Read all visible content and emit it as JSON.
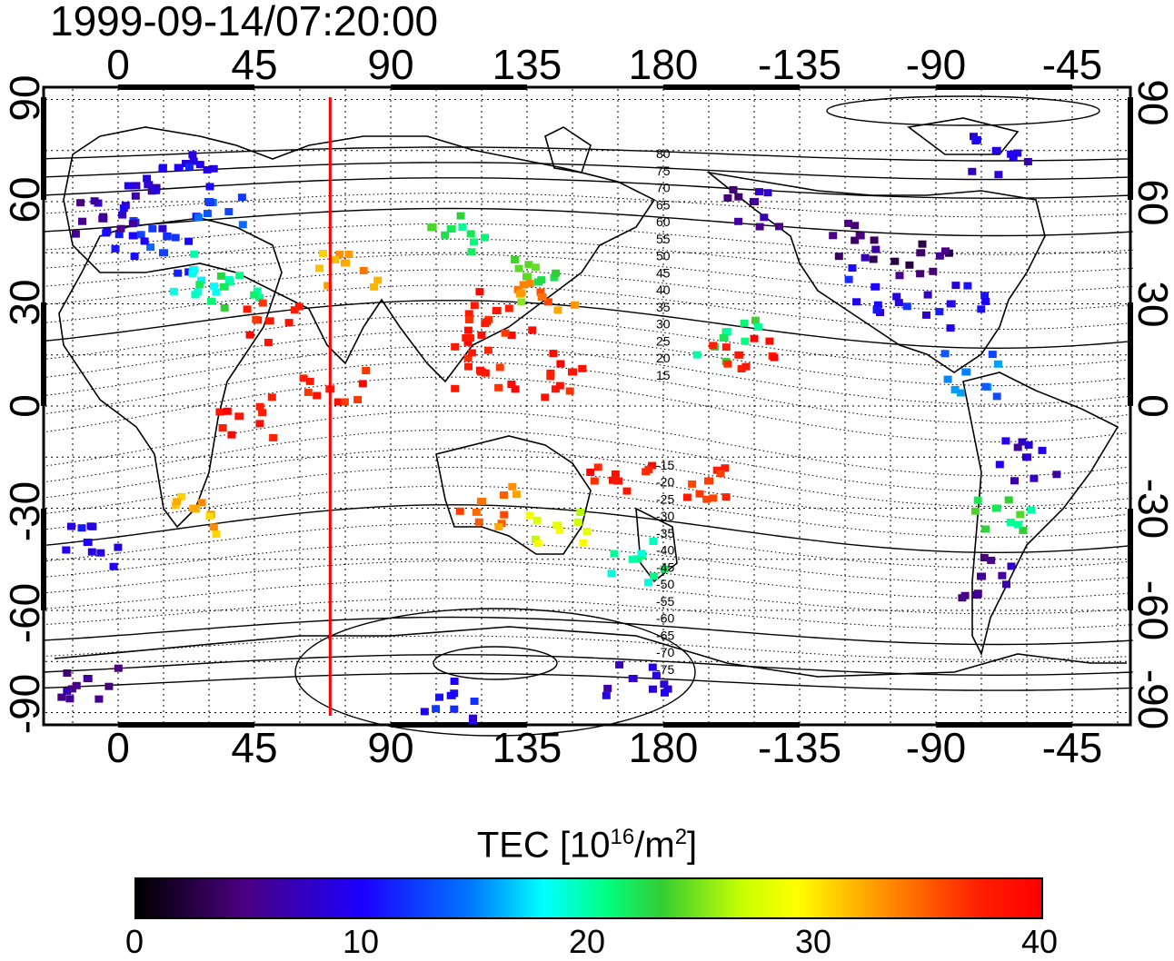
{
  "timestamp": "1999-09-14/07:20:00",
  "top_lon_labels": [
    "0",
    "45",
    "90",
    "135",
    "180",
    "-135",
    "-90",
    "-45"
  ],
  "bottom_lon_labels": [
    "0",
    "45",
    "90",
    "135",
    "180",
    "-135",
    "-90",
    "-45"
  ],
  "left_lat_labels": [
    "90",
    "60",
    "30",
    "0",
    "-30",
    "-60",
    "-90"
  ],
  "right_lat_labels": [
    "90",
    "60",
    "30",
    "0",
    "-30",
    "-60",
    "-90"
  ],
  "contour_labels": [
    "80",
    "75",
    "70",
    "65",
    "60",
    "55",
    "50",
    "45",
    "40",
    "35",
    "30",
    "25",
    "20",
    "15",
    "-15",
    "-20",
    "-25",
    "-30",
    "-35",
    "-40",
    "-45",
    "-50",
    "-55",
    "-60",
    "-65",
    "-70",
    "-75"
  ],
  "colorbar": {
    "title_pre": "TEC  [10",
    "title_exp1": "16",
    "title_mid": "/m",
    "title_exp2": "2",
    "title_post": "]",
    "ticks": [
      "0",
      "10",
      "20",
      "30",
      "40"
    ],
    "min": 0,
    "max": 40
  },
  "marker_longitude": 70,
  "colors": {
    "marker": "#ff0000"
  },
  "chart_data": {
    "type": "heatmap",
    "title": "1999-09-14/07:20:00",
    "xlabel": "",
    "ylabel": "",
    "xlim": [
      -25,
      335
    ],
    "ylim": [
      -90,
      90
    ],
    "value_label": "TEC [10^16/m^2]",
    "value_range": [
      0,
      40
    ],
    "tec_patches": [
      {
        "lon": 10,
        "lat": 65,
        "tec": 8
      },
      {
        "lon": 20,
        "lat": 70,
        "tec": 10
      },
      {
        "lon": 30,
        "lat": 60,
        "tec": 12
      },
      {
        "lon": 5,
        "lat": 50,
        "tec": 10
      },
      {
        "lon": 15,
        "lat": 45,
        "tec": 12
      },
      {
        "lon": -5,
        "lat": 55,
        "tec": 6
      },
      {
        "lon": 25,
        "lat": 40,
        "tec": 18
      },
      {
        "lon": 35,
        "lat": 35,
        "tec": 22
      },
      {
        "lon": 50,
        "lat": 25,
        "tec": 38
      },
      {
        "lon": 75,
        "lat": 42,
        "tec": 32
      },
      {
        "lon": 110,
        "lat": 52,
        "tec": 22
      },
      {
        "lon": 135,
        "lat": 38,
        "tec": 24
      },
      {
        "lon": 125,
        "lat": 28,
        "tec": 38
      },
      {
        "lon": 140,
        "lat": 32,
        "tec": 34
      },
      {
        "lon": 115,
        "lat": 20,
        "tec": 38
      },
      {
        "lon": 120,
        "lat": 10,
        "tec": 38
      },
      {
        "lon": 150,
        "lat": 10,
        "tec": 38
      },
      {
        "lon": 70,
        "lat": 5,
        "tec": 38
      },
      {
        "lon": 40,
        "lat": -3,
        "tec": 38
      },
      {
        "lon": 25,
        "lat": -30,
        "tec": 32
      },
      {
        "lon": -10,
        "lat": -40,
        "tec": 10
      },
      {
        "lon": 120,
        "lat": -28,
        "tec": 34
      },
      {
        "lon": 145,
        "lat": -35,
        "tec": 28
      },
      {
        "lon": 165,
        "lat": -22,
        "tec": 38
      },
      {
        "lon": 170,
        "lat": -45,
        "tec": 20
      },
      {
        "lon": 195,
        "lat": -22,
        "tec": 36
      },
      {
        "lon": 200,
        "lat": 20,
        "tec": 22
      },
      {
        "lon": 205,
        "lat": 15,
        "tec": 38
      },
      {
        "lon": 245,
        "lat": 50,
        "tec": 5
      },
      {
        "lon": 265,
        "lat": 45,
        "tec": 4
      },
      {
        "lon": 250,
        "lat": 35,
        "tec": 10
      },
      {
        "lon": 275,
        "lat": 30,
        "tec": 9
      },
      {
        "lon": 280,
        "lat": 10,
        "tec": 14
      },
      {
        "lon": 300,
        "lat": -15,
        "tec": 8
      },
      {
        "lon": 290,
        "lat": -30,
        "tec": 22
      },
      {
        "lon": 285,
        "lat": -50,
        "tec": 6
      },
      {
        "lon": 210,
        "lat": 60,
        "tec": 6
      },
      {
        "lon": 290,
        "lat": 75,
        "tec": 9
      },
      {
        "lon": 110,
        "lat": -85,
        "tec": 10
      },
      {
        "lon": 170,
        "lat": -80,
        "tec": 8
      },
      {
        "lon": -10,
        "lat": -80,
        "tec": 6
      }
    ]
  }
}
